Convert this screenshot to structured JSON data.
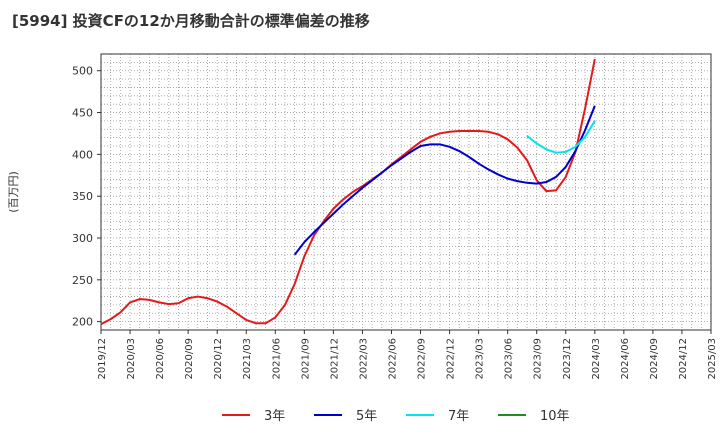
{
  "chart_data": {
    "type": "line",
    "title": "[5994]  投資CFの12か月移動合計の標準偏差の推移",
    "ylabel": "(百万円)",
    "xlabel": "",
    "ylim": [
      190,
      520
    ],
    "yticks": [
      200,
      250,
      300,
      350,
      400,
      450,
      500
    ],
    "xticks": [
      "2019/12",
      "2020/03",
      "2020/06",
      "2020/09",
      "2020/12",
      "2021/03",
      "2021/06",
      "2021/09",
      "2021/12",
      "2022/03",
      "2022/06",
      "2022/09",
      "2022/12",
      "2023/03",
      "2023/06",
      "2023/09",
      "2023/12",
      "2024/03",
      "2024/06",
      "2024/09",
      "2024/12",
      "2025/03"
    ],
    "grid": true,
    "legend_position": "bottom",
    "series": [
      {
        "name": "3年",
        "color": "#e31a1c",
        "points": [
          [
            "2019/12",
            197
          ],
          [
            "2020/01",
            203
          ],
          [
            "2020/02",
            211
          ],
          [
            "2020/03",
            223
          ],
          [
            "2020/04",
            227
          ],
          [
            "2020/05",
            226
          ],
          [
            "2020/06",
            223
          ],
          [
            "2020/07",
            221
          ],
          [
            "2020/08",
            222
          ],
          [
            "2020/09",
            228
          ],
          [
            "2020/10",
            230
          ],
          [
            "2020/11",
            228
          ],
          [
            "2020/12",
            224
          ],
          [
            "2021/01",
            218
          ],
          [
            "2021/02",
            210
          ],
          [
            "2021/03",
            202
          ],
          [
            "2021/04",
            198
          ],
          [
            "2021/05",
            198
          ],
          [
            "2021/06",
            205
          ],
          [
            "2021/07",
            220
          ],
          [
            "2021/08",
            245
          ],
          [
            "2021/09",
            278
          ],
          [
            "2021/10",
            303
          ],
          [
            "2021/11",
            320
          ],
          [
            "2021/12",
            335
          ],
          [
            "2022/01",
            346
          ],
          [
            "2022/02",
            355
          ],
          [
            "2022/03",
            362
          ],
          [
            "2022/04",
            370
          ],
          [
            "2022/05",
            378
          ],
          [
            "2022/06",
            388
          ],
          [
            "2022/07",
            397
          ],
          [
            "2022/08",
            406
          ],
          [
            "2022/09",
            415
          ],
          [
            "2022/10",
            421
          ],
          [
            "2022/11",
            425
          ],
          [
            "2022/12",
            427
          ],
          [
            "2023/01",
            428
          ],
          [
            "2023/02",
            428
          ],
          [
            "2023/03",
            428
          ],
          [
            "2023/04",
            427
          ],
          [
            "2023/05",
            424
          ],
          [
            "2023/06",
            418
          ],
          [
            "2023/07",
            408
          ],
          [
            "2023/08",
            393
          ],
          [
            "2023/09",
            369
          ],
          [
            "2023/10",
            356
          ],
          [
            "2023/11",
            357
          ],
          [
            "2023/12",
            373
          ],
          [
            "2024/01",
            403
          ],
          [
            "2024/02",
            455
          ],
          [
            "2024/03",
            514
          ]
        ]
      },
      {
        "name": "5年",
        "color": "#0000cc",
        "points": [
          [
            "2021/08",
            280
          ],
          [
            "2021/09",
            295
          ],
          [
            "2021/10",
            307
          ],
          [
            "2021/11",
            318
          ],
          [
            "2021/12",
            329
          ],
          [
            "2022/01",
            340
          ],
          [
            "2022/02",
            350
          ],
          [
            "2022/03",
            360
          ],
          [
            "2022/04",
            369
          ],
          [
            "2022/05",
            378
          ],
          [
            "2022/06",
            387
          ],
          [
            "2022/07",
            395
          ],
          [
            "2022/08",
            403
          ],
          [
            "2022/09",
            410
          ],
          [
            "2022/10",
            412
          ],
          [
            "2022/11",
            412
          ],
          [
            "2022/12",
            409
          ],
          [
            "2023/01",
            404
          ],
          [
            "2023/02",
            397
          ],
          [
            "2023/03",
            389
          ],
          [
            "2023/04",
            382
          ],
          [
            "2023/05",
            376
          ],
          [
            "2023/06",
            371
          ],
          [
            "2023/07",
            368
          ],
          [
            "2023/08",
            366
          ],
          [
            "2023/09",
            365
          ],
          [
            "2023/10",
            367
          ],
          [
            "2023/11",
            373
          ],
          [
            "2023/12",
            385
          ],
          [
            "2024/01",
            404
          ],
          [
            "2024/02",
            429
          ],
          [
            "2024/03",
            458
          ]
        ]
      },
      {
        "name": "7年",
        "color": "#00e5ee",
        "points": [
          [
            "2023/08",
            422
          ],
          [
            "2023/09",
            413
          ],
          [
            "2023/10",
            406
          ],
          [
            "2023/11",
            402
          ],
          [
            "2023/12",
            403
          ],
          [
            "2024/01",
            409
          ],
          [
            "2024/02",
            421
          ],
          [
            "2024/03",
            440
          ]
        ]
      },
      {
        "name": "10年",
        "color": "#228b22",
        "points": []
      }
    ]
  }
}
